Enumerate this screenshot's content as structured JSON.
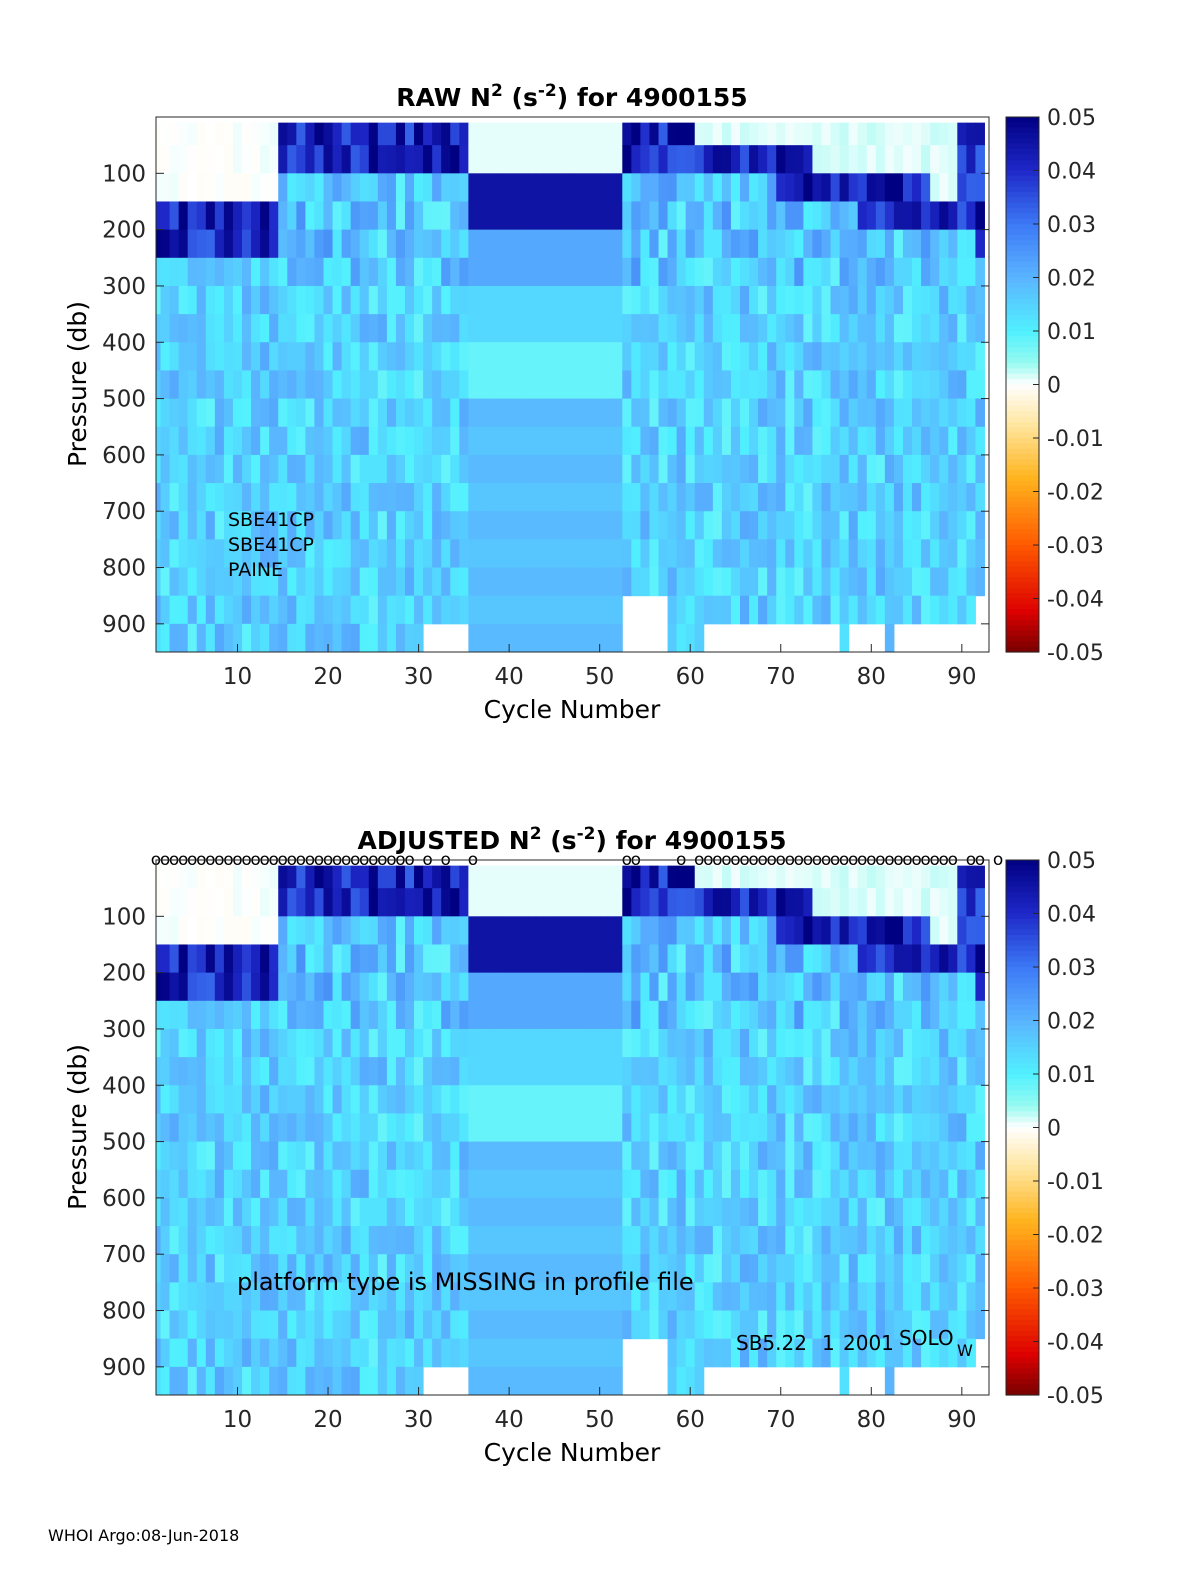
{
  "chart_data": [
    {
      "type": "heatmap",
      "title": {
        "prefix": "RAW N",
        "sup1": "2",
        "mid": " (s",
        "sup2": "-2",
        "suffix": ") for 4900155"
      },
      "xlabel": "Cycle Number",
      "ylabel": "Pressure (db)",
      "xlim": [
        1,
        93
      ],
      "ylim": [
        0,
        950
      ],
      "y_reversed": true,
      "xticks": [
        10,
        20,
        30,
        40,
        50,
        60,
        70,
        80,
        90
      ],
      "yticks": [
        100,
        200,
        300,
        400,
        500,
        600,
        700,
        800,
        900
      ],
      "colorbar": {
        "min": -0.05,
        "max": 0.05,
        "ticks": [
          "0.05",
          "0.04",
          "0.03",
          "0.02",
          "0.01",
          "0",
          "-0.01",
          "-0.02",
          "-0.03",
          "-0.04",
          "-0.05"
        ],
        "colormap": "jet-with-white-at-zero"
      },
      "annotations": [
        "SBE41CP",
        "SBE41CP",
        "PAINE"
      ],
      "z_range_approx": [
        -0.01,
        0.05
      ],
      "notes": "Near-surface (0-200 db) values high (0.03-0.05) with near-zero patches at the top; deeper values mostly 0.005-0.02; missing data at bottom for cycles 31-35, 53-57 and 61-91."
    },
    {
      "type": "heatmap",
      "title": {
        "prefix": "ADJUSTED N",
        "sup1": "2",
        "mid": " (s",
        "sup2": "-2",
        "suffix": ") for 4900155"
      },
      "xlabel": "Cycle Number",
      "ylabel": "Pressure (db)",
      "xlim": [
        1,
        93
      ],
      "ylim": [
        0,
        950
      ],
      "y_reversed": true,
      "xticks": [
        10,
        20,
        30,
        40,
        50,
        60,
        70,
        80,
        90
      ],
      "yticks": [
        100,
        200,
        300,
        400,
        500,
        600,
        700,
        800,
        900
      ],
      "colorbar": {
        "min": -0.05,
        "max": 0.05,
        "ticks": [
          "0.05",
          "0.04",
          "0.03",
          "0.02",
          "0.01",
          "0",
          "-0.01",
          "-0.02",
          "-0.03",
          "-0.04",
          "-0.05"
        ],
        "colormap": "jet-with-white-at-zero"
      },
      "annotations": [
        "platform type is MISSING in profile file",
        "SB5.22",
        "1",
        "2001",
        "SOLO",
        "W"
      ],
      "marker_symbol": "o",
      "marker_cycles": [
        1,
        2,
        3,
        4,
        5,
        6,
        7,
        8,
        9,
        10,
        11,
        12,
        13,
        14,
        15,
        16,
        17,
        18,
        19,
        20,
        21,
        22,
        23,
        24,
        25,
        26,
        27,
        28,
        29,
        31,
        33,
        36,
        53,
        54,
        59,
        61,
        62,
        63,
        64,
        65,
        66,
        67,
        68,
        69,
        70,
        71,
        72,
        73,
        74,
        75,
        76,
        77,
        78,
        79,
        80,
        81,
        82,
        83,
        84,
        85,
        86,
        87,
        88,
        89,
        91,
        92,
        94
      ]
    }
  ],
  "footer": "WHOI Argo:08-Jun-2018"
}
